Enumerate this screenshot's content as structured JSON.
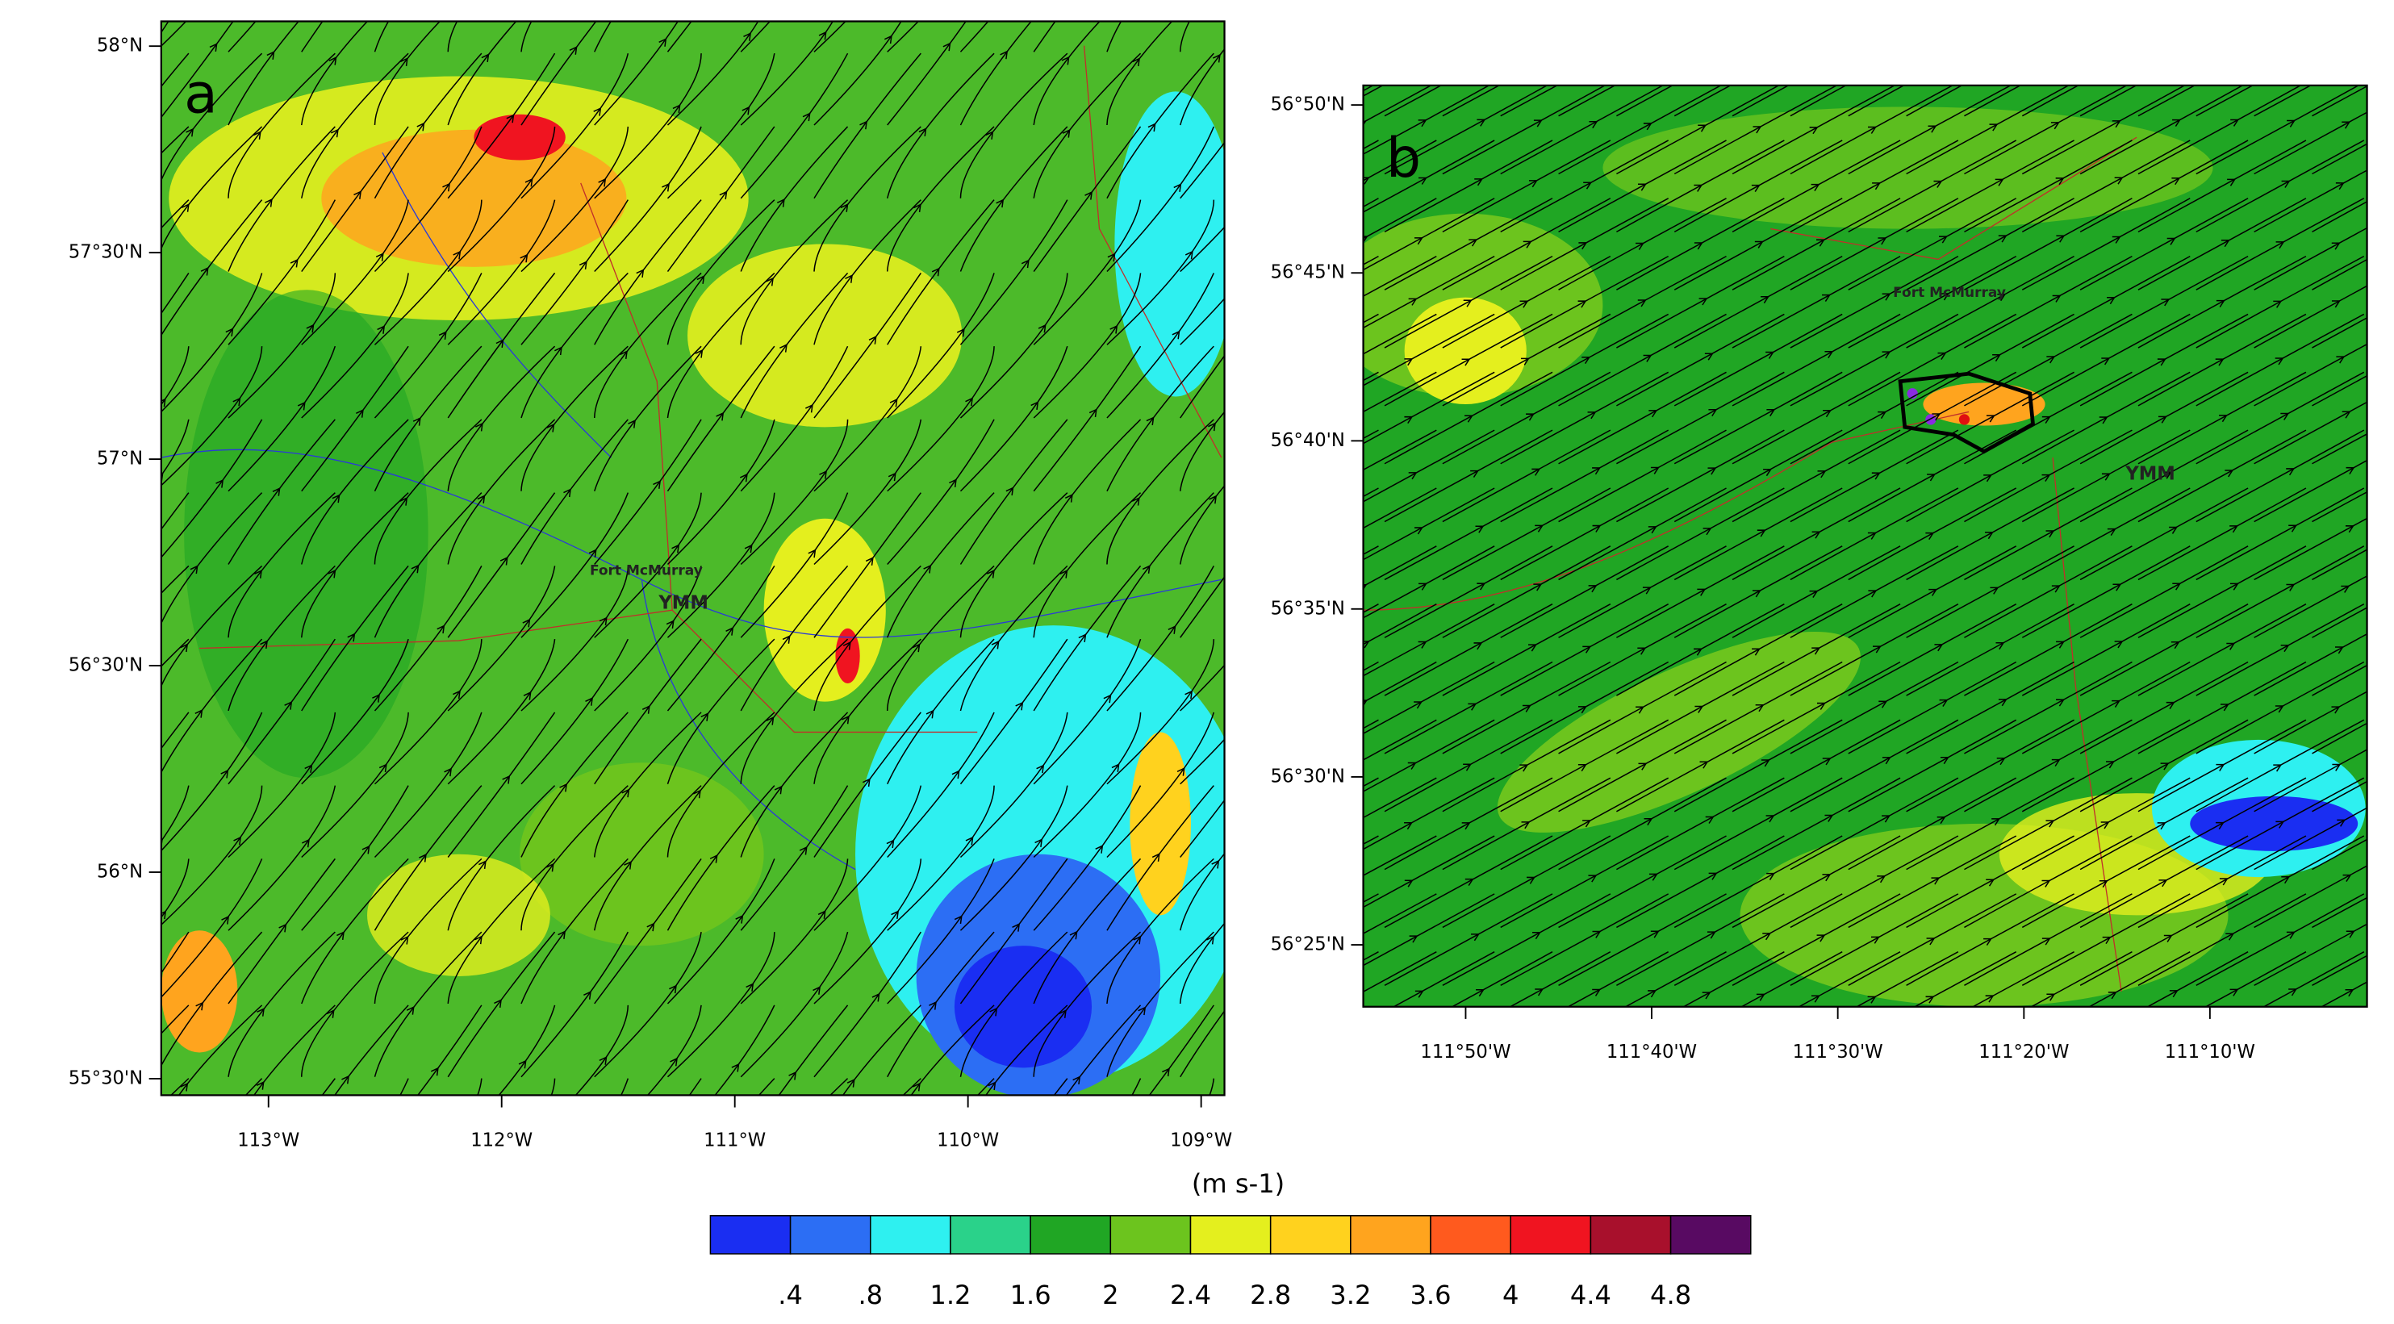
{
  "panels": [
    {
      "label": "a",
      "xlim": [
        -113.46,
        -108.9
      ],
      "ylim": [
        55.46,
        58.06
      ],
      "xticks": [
        {
          "value": -113,
          "label": "113°W"
        },
        {
          "value": -112,
          "label": "112°W"
        },
        {
          "value": -111,
          "label": "111°W"
        },
        {
          "value": -110,
          "label": "110°W"
        },
        {
          "value": -109,
          "label": "109°W"
        }
      ],
      "yticks": [
        {
          "value": 58,
          "label": "58°N"
        },
        {
          "value": 57.5,
          "label": "57°30'N"
        },
        {
          "value": 57,
          "label": "57°N"
        },
        {
          "value": 56.5,
          "label": "56°30'N"
        },
        {
          "value": 56,
          "label": "56°N"
        },
        {
          "value": 55.5,
          "label": "55°30'N"
        }
      ],
      "places": [
        {
          "name": "Fort McMurray",
          "lon": -111.38,
          "lat": 56.73
        },
        {
          "name": "YMM",
          "lon": -111.22,
          "lat": 56.65
        }
      ]
    },
    {
      "label": "b",
      "xlim": [
        -111.925,
        -111.026
      ],
      "ylim": [
        56.386,
        56.843
      ],
      "xticks": [
        {
          "value": -111.8333,
          "label": "111°50'W"
        },
        {
          "value": -111.6667,
          "label": "111°40'W"
        },
        {
          "value": -111.5,
          "label": "111°30'W"
        },
        {
          "value": -111.3333,
          "label": "111°20'W"
        },
        {
          "value": -111.1667,
          "label": "111°10'W"
        }
      ],
      "yticks": [
        {
          "value": 56.8333,
          "label": "56°50'N"
        },
        {
          "value": 56.75,
          "label": "56°45'N"
        },
        {
          "value": 56.6667,
          "label": "56°40'N"
        },
        {
          "value": 56.5833,
          "label": "56°35'N"
        },
        {
          "value": 56.5,
          "label": "56°30'N"
        },
        {
          "value": 56.4167,
          "label": "56°25'N"
        }
      ],
      "places": [
        {
          "name": "Fort McMurray",
          "lon": -111.4,
          "lat": 56.74
        },
        {
          "name": "YMM",
          "lon": -111.22,
          "lat": 56.65
        }
      ]
    }
  ],
  "colorbar": {
    "title": "(m s-1)",
    "levels": [
      {
        "value": 0.4,
        "label": ".4"
      },
      {
        "value": 0.8,
        "label": ".8"
      },
      1.2,
      1.6,
      2,
      2.4,
      2.8,
      3.2,
      3.6,
      4,
      4.4,
      4.8
    ],
    "colors": [
      "#1a2ef2",
      "#2c6ef4",
      "#2ef0f0",
      "#2ad28a",
      "#20a624",
      "#6cc41e",
      "#e4ef1e",
      "#ffd21e",
      "#ffa41e",
      "#ff5a1e",
      "#f01420",
      "#a8102c",
      "#580a62"
    ]
  }
}
